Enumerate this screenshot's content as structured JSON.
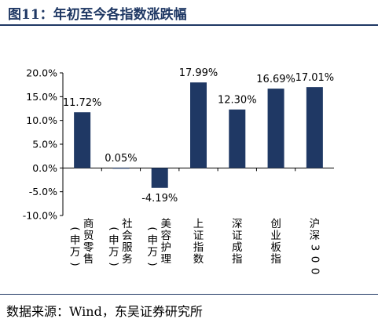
{
  "header": {
    "title": "图11：年初至今各指数涨跌幅"
  },
  "footer": {
    "source": "数据来源：Wind，东吴证券研究所"
  },
  "colors": {
    "bar": "#1f3864",
    "accent": "#1f3864"
  },
  "chart_data": {
    "type": "bar",
    "categories": [
      {
        "line1": "商贸零售",
        "line2": "(申万)"
      },
      {
        "line1": "社会服务",
        "line2": "(申万)"
      },
      {
        "line1": "美容护理",
        "line2": "(申万)"
      },
      {
        "line1": "上证指数",
        "line2": ""
      },
      {
        "line1": "深证成指",
        "line2": ""
      },
      {
        "line1": "创业板指",
        "line2": ""
      },
      {
        "line1": "沪深300",
        "line2": ""
      }
    ],
    "values": [
      11.72,
      0.05,
      -4.19,
      17.99,
      12.3,
      16.69,
      17.01
    ],
    "data_labels": [
      "11.72%",
      "0.05%",
      "-4.19%",
      "17.99%",
      "12.30%",
      "16.69%",
      "17.01%"
    ],
    "y_ticks": [
      -10,
      -5,
      0,
      5,
      10,
      15,
      20
    ],
    "y_tick_labels": [
      "-10.0%",
      "-5.0%",
      "0.0%",
      "5.0%",
      "10.0%",
      "15.0%",
      "20.0%"
    ],
    "ylim": [
      -10,
      20
    ],
    "grid": false,
    "legend": "none"
  }
}
